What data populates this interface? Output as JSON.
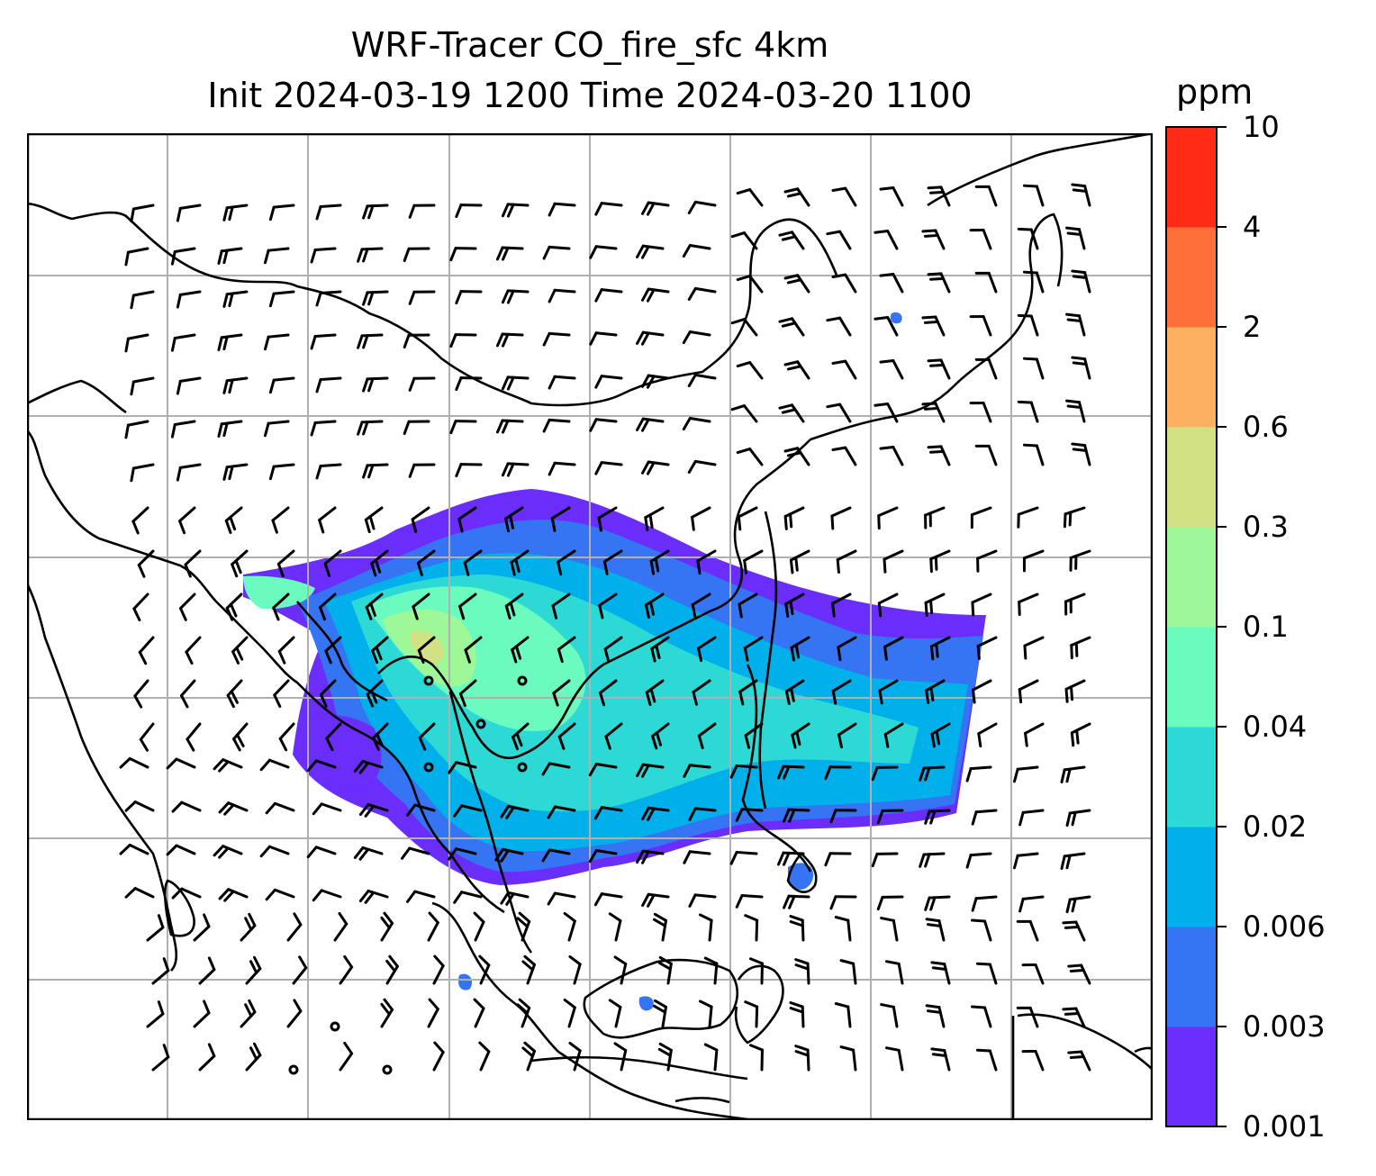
{
  "title": {
    "line1": "WRF-Tracer CO_fire_sfc 4km",
    "line2": "Init 2024-03-19 1200 Time 2024-03-20 1100"
  },
  "colorbar": {
    "unit": "ppm",
    "levels": [
      "0.001",
      "0.003",
      "0.006",
      "0.02",
      "0.04",
      "0.1",
      "0.3",
      "0.6",
      "2",
      "4",
      "10"
    ],
    "colors": [
      "#6a2dfa",
      "#3574f2",
      "#00b0ea",
      "#2dd9d5",
      "#6cfbbf",
      "#9ff898",
      "#d1e183",
      "#feb061",
      "#ff6f39",
      "#ff2b16"
    ]
  },
  "map": {
    "graticule": "on",
    "wind_barbs": "on"
  }
}
